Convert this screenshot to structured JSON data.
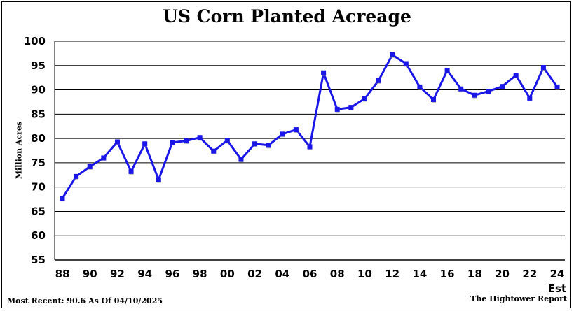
{
  "title": "US Corn Planted Acreage",
  "footer_left": "Most Recent: 90.6 As Of 04/10/2025",
  "footer_right": "The Hightower Report",
  "colors": {
    "line": "#1a16e8",
    "marker": "#1a16e8",
    "grid": "#000000"
  },
  "chart_data": {
    "type": "line",
    "title": "US Corn Planted Acreage",
    "ylabel": "Million Acres",
    "xlabel": "",
    "ylim": [
      55,
      100
    ],
    "yticks": [
      55,
      60,
      65,
      70,
      75,
      80,
      85,
      90,
      95,
      100
    ],
    "x_tick_labels": [
      "88",
      "90",
      "92",
      "94",
      "96",
      "98",
      "00",
      "02",
      "04",
      "06",
      "08",
      "10",
      "12",
      "14",
      "16",
      "18",
      "20",
      "22",
      "24"
    ],
    "x_note": "Est",
    "grid": true,
    "x": [
      "88",
      "89",
      "90",
      "91",
      "92",
      "93",
      "94",
      "95",
      "96",
      "97",
      "98",
      "99",
      "00",
      "01",
      "02",
      "03",
      "04",
      "05",
      "06",
      "07",
      "08",
      "09",
      "10",
      "11",
      "12",
      "13",
      "14",
      "15",
      "16",
      "17",
      "18",
      "19",
      "20",
      "21",
      "22",
      "23",
      "24"
    ],
    "series": [
      {
        "values": [
          67.7,
          72.2,
          74.2,
          76.0,
          79.3,
          73.2,
          78.9,
          71.5,
          79.2,
          79.5,
          80.2,
          77.4,
          79.6,
          75.7,
          78.9,
          78.6,
          80.9,
          81.8,
          78.3,
          93.5,
          86.0,
          86.4,
          88.2,
          91.9,
          97.2,
          95.4,
          90.6,
          88.0,
          94.0,
          90.2,
          88.9,
          89.7,
          90.7,
          93.0,
          88.3,
          94.6,
          90.6
        ]
      }
    ]
  }
}
